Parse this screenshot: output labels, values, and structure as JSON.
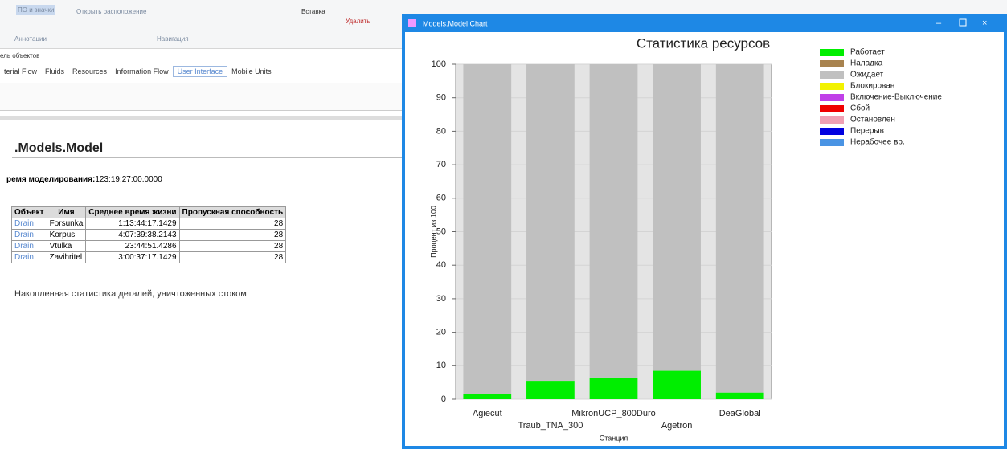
{
  "app": {
    "ribbon": [
      "ПО и значки",
      "Аннотации",
      "Открыть расположение",
      "Навигация",
      "Вставка",
      "Удалить"
    ],
    "panel_label": "ель объектов",
    "tabs": [
      "terial Flow",
      "Fluids",
      "Resources",
      "Information Flow",
      "User Interface",
      "Mobile Units"
    ],
    "heading": ".Models.Model",
    "sim_time_label": "ремя моделирования:",
    "sim_time": "123:19:27:00.0000",
    "table": {
      "header": [
        "Объект",
        "Имя",
        "Среднее время жизни",
        "Пропускная способность"
      ],
      "rows": [
        [
          "Drain",
          "Forsunka",
          "1:13:44:17.1429",
          "28"
        ],
        [
          "Drain",
          "Korpus",
          "4:07:39:38.2143",
          "28"
        ],
        [
          "Drain",
          "Vtulka",
          "23:44:51.4286",
          "28"
        ],
        [
          "Drain",
          "Zavihritel",
          "3:00:37:17.1429",
          "28"
        ]
      ]
    },
    "footer_text": "Накопленная статистика деталей, уничтоженных стоком"
  },
  "window": {
    "title": "Models.Model Chart"
  },
  "chart_data": {
    "type": "stacked_bar",
    "title": "Статистика ресурсов",
    "x_label": "Станция",
    "y_label": "Процент из 100",
    "categories": [
      "Agiecut",
      "Traub_TNA_300",
      "MikronUCP_800Duro",
      "Agetron",
      "DeaGlobal"
    ],
    "series": [
      {
        "name": "Работает",
        "color": "#00ee00",
        "values": [
          1.5,
          5.5,
          6.5,
          8.5,
          2
        ]
      },
      {
        "name": "Наладка",
        "color": "#a8834f",
        "values": [
          0,
          0,
          0,
          0,
          0
        ]
      },
      {
        "name": "Ожидает",
        "color": "#c0c0c0",
        "values": [
          98.5,
          94.5,
          93.5,
          91.5,
          98
        ]
      },
      {
        "name": "Блокирован",
        "color": "#f2f200",
        "values": [
          0,
          0,
          0,
          0,
          0
        ]
      },
      {
        "name": "Включение-Выключение",
        "color": "#c040e8",
        "values": [
          0,
          0,
          0,
          0,
          0
        ]
      },
      {
        "name": "Сбой",
        "color": "#f00000",
        "values": [
          0,
          0,
          0,
          0,
          0
        ]
      },
      {
        "name": "Остановлен",
        "color": "#f0a0b4",
        "values": [
          0,
          0,
          0,
          0,
          0
        ]
      },
      {
        "name": "Перерыв",
        "color": "#0000e0",
        "values": [
          0,
          0,
          0,
          0,
          0
        ]
      },
      {
        "name": "Нерабочее вр.",
        "color": "#4a94e4",
        "values": [
          0,
          0,
          0,
          0,
          0
        ]
      }
    ],
    "ylim": [
      0,
      100
    ],
    "yticks": [
      0,
      10,
      20,
      30,
      40,
      50,
      60,
      70,
      80,
      90,
      100
    ],
    "grid": true,
    "legend": "right"
  }
}
